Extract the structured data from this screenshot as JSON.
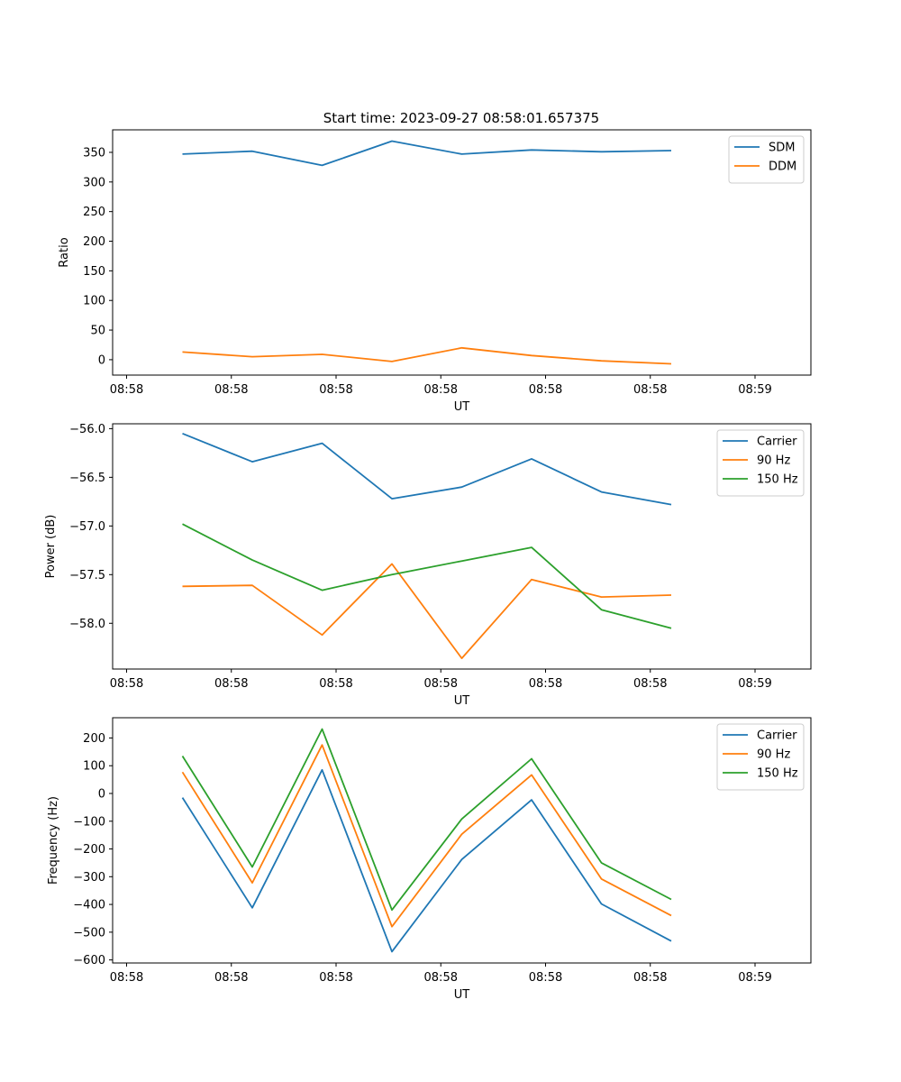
{
  "figure_title": "Start time: 2023-09-27 08:58:01.657375",
  "colors": {
    "blue": "#1f77b4",
    "orange": "#ff7f0e",
    "green": "#2ca02c"
  },
  "chart_data": [
    {
      "type": "line",
      "title": "Start time: 2023-09-27 08:58:01.657375",
      "xlabel": "UT",
      "ylabel": "Ratio",
      "x": [
        1,
        2,
        3,
        4,
        5,
        6,
        7,
        8
      ],
      "xlim": [
        0,
        10
      ],
      "x_ticks": [
        0.2,
        1.7,
        3.2,
        4.7,
        6.2,
        7.7,
        9.2
      ],
      "x_tick_labels": [
        "08:58",
        "08:58",
        "08:58",
        "08:58",
        "08:58",
        "08:58",
        "08:59"
      ],
      "ylim": [
        -26,
        388
      ],
      "y_ticks": [
        0,
        50,
        100,
        150,
        200,
        250,
        300,
        350
      ],
      "y_tick_labels": [
        "0",
        "50",
        "100",
        "150",
        "200",
        "250",
        "300",
        "350"
      ],
      "legend_position": "top-right",
      "series": [
        {
          "name": "SDM",
          "color": "#1f77b4",
          "values": [
            347,
            352,
            328,
            369,
            347,
            354,
            351,
            353
          ]
        },
        {
          "name": "DDM",
          "color": "#ff7f0e",
          "values": [
            13,
            5,
            9,
            -3,
            20,
            7,
            -2,
            -7
          ]
        }
      ]
    },
    {
      "type": "line",
      "title": "",
      "xlabel": "UT",
      "ylabel": "Power (dB)",
      "x": [
        1,
        2,
        3,
        4,
        5,
        6,
        7,
        8
      ],
      "xlim": [
        0,
        10
      ],
      "x_ticks": [
        0.2,
        1.7,
        3.2,
        4.7,
        6.2,
        7.7,
        9.2
      ],
      "x_tick_labels": [
        "08:58",
        "08:58",
        "08:58",
        "08:58",
        "08:58",
        "08:58",
        "08:59"
      ],
      "ylim": [
        -58.47,
        -55.95
      ],
      "y_ticks": [
        -56.0,
        -56.5,
        -57.0,
        -57.5,
        -58.0
      ],
      "y_tick_labels": [
        "−56.0",
        "−56.5",
        "−57.0",
        "−57.5",
        "−58.0"
      ],
      "legend_position": "top-right",
      "series": [
        {
          "name": "Carrier",
          "color": "#1f77b4",
          "values": [
            -56.05,
            -56.34,
            -56.15,
            -56.72,
            -56.6,
            -56.31,
            -56.65,
            -56.78
          ]
        },
        {
          "name": "90 Hz",
          "color": "#ff7f0e",
          "values": [
            -57.62,
            -57.61,
            -58.12,
            -57.39,
            -58.36,
            -57.55,
            -57.73,
            -57.71
          ]
        },
        {
          "name": "150 Hz",
          "color": "#2ca02c",
          "values": [
            -56.98,
            -57.35,
            -57.66,
            -57.5,
            -57.36,
            -57.22,
            -57.86,
            -58.05
          ]
        }
      ]
    },
    {
      "type": "line",
      "title": "",
      "xlabel": "UT",
      "ylabel": "Frequency (Hz)",
      "x": [
        1,
        2,
        3,
        4,
        5,
        6,
        7,
        8
      ],
      "xlim": [
        0,
        10
      ],
      "x_ticks": [
        0.2,
        1.7,
        3.2,
        4.7,
        6.2,
        7.7,
        9.2
      ],
      "x_tick_labels": [
        "08:58",
        "08:58",
        "08:58",
        "08:58",
        "08:58",
        "08:58",
        "08:59"
      ],
      "ylim": [
        -611,
        273
      ],
      "y_ticks": [
        200,
        100,
        0,
        -100,
        -200,
        -300,
        -400,
        -500,
        -600
      ],
      "y_tick_labels": [
        "200",
        "100",
        "0",
        "−100",
        "−200",
        "−300",
        "−400",
        "−500",
        "−600"
      ],
      "legend_position": "top-right",
      "series": [
        {
          "name": "Carrier",
          "color": "#1f77b4",
          "values": [
            -15,
            -412,
            85,
            -570,
            -238,
            -23,
            -398,
            -532
          ]
        },
        {
          "name": "90 Hz",
          "color": "#ff7f0e",
          "values": [
            77,
            -322,
            175,
            -480,
            -147,
            67,
            -308,
            -440
          ]
        },
        {
          "name": "150 Hz",
          "color": "#2ca02c",
          "values": [
            135,
            -265,
            232,
            -420,
            -92,
            125,
            -250,
            -382
          ]
        }
      ]
    }
  ]
}
